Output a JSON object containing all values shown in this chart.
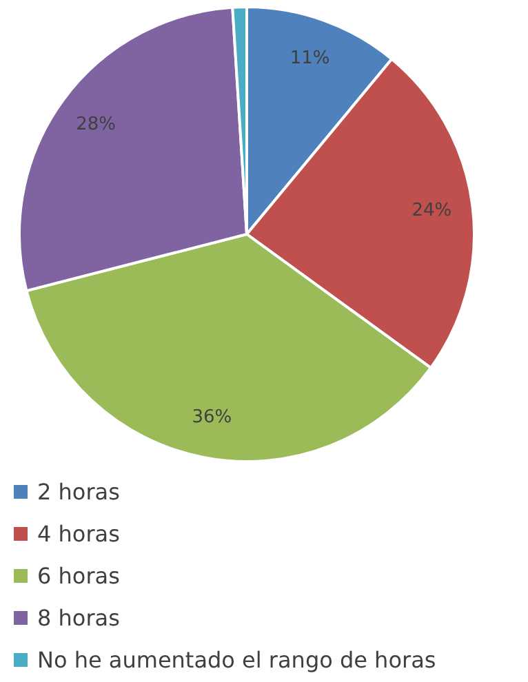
{
  "chart_data": {
    "type": "pie",
    "categories": [
      "2 horas",
      "4 horas",
      "6 horas",
      "8 horas",
      "No he aumentado el rango de horas"
    ],
    "values": [
      11,
      24,
      36,
      28,
      1
    ],
    "colors": [
      "#4f81bd",
      "#c0504d",
      "#9bbb59",
      "#8064a2",
      "#4bacc6"
    ],
    "value_labels": [
      "11%",
      "24%",
      "36%",
      "28%",
      null
    ],
    "legend": "bottom"
  }
}
